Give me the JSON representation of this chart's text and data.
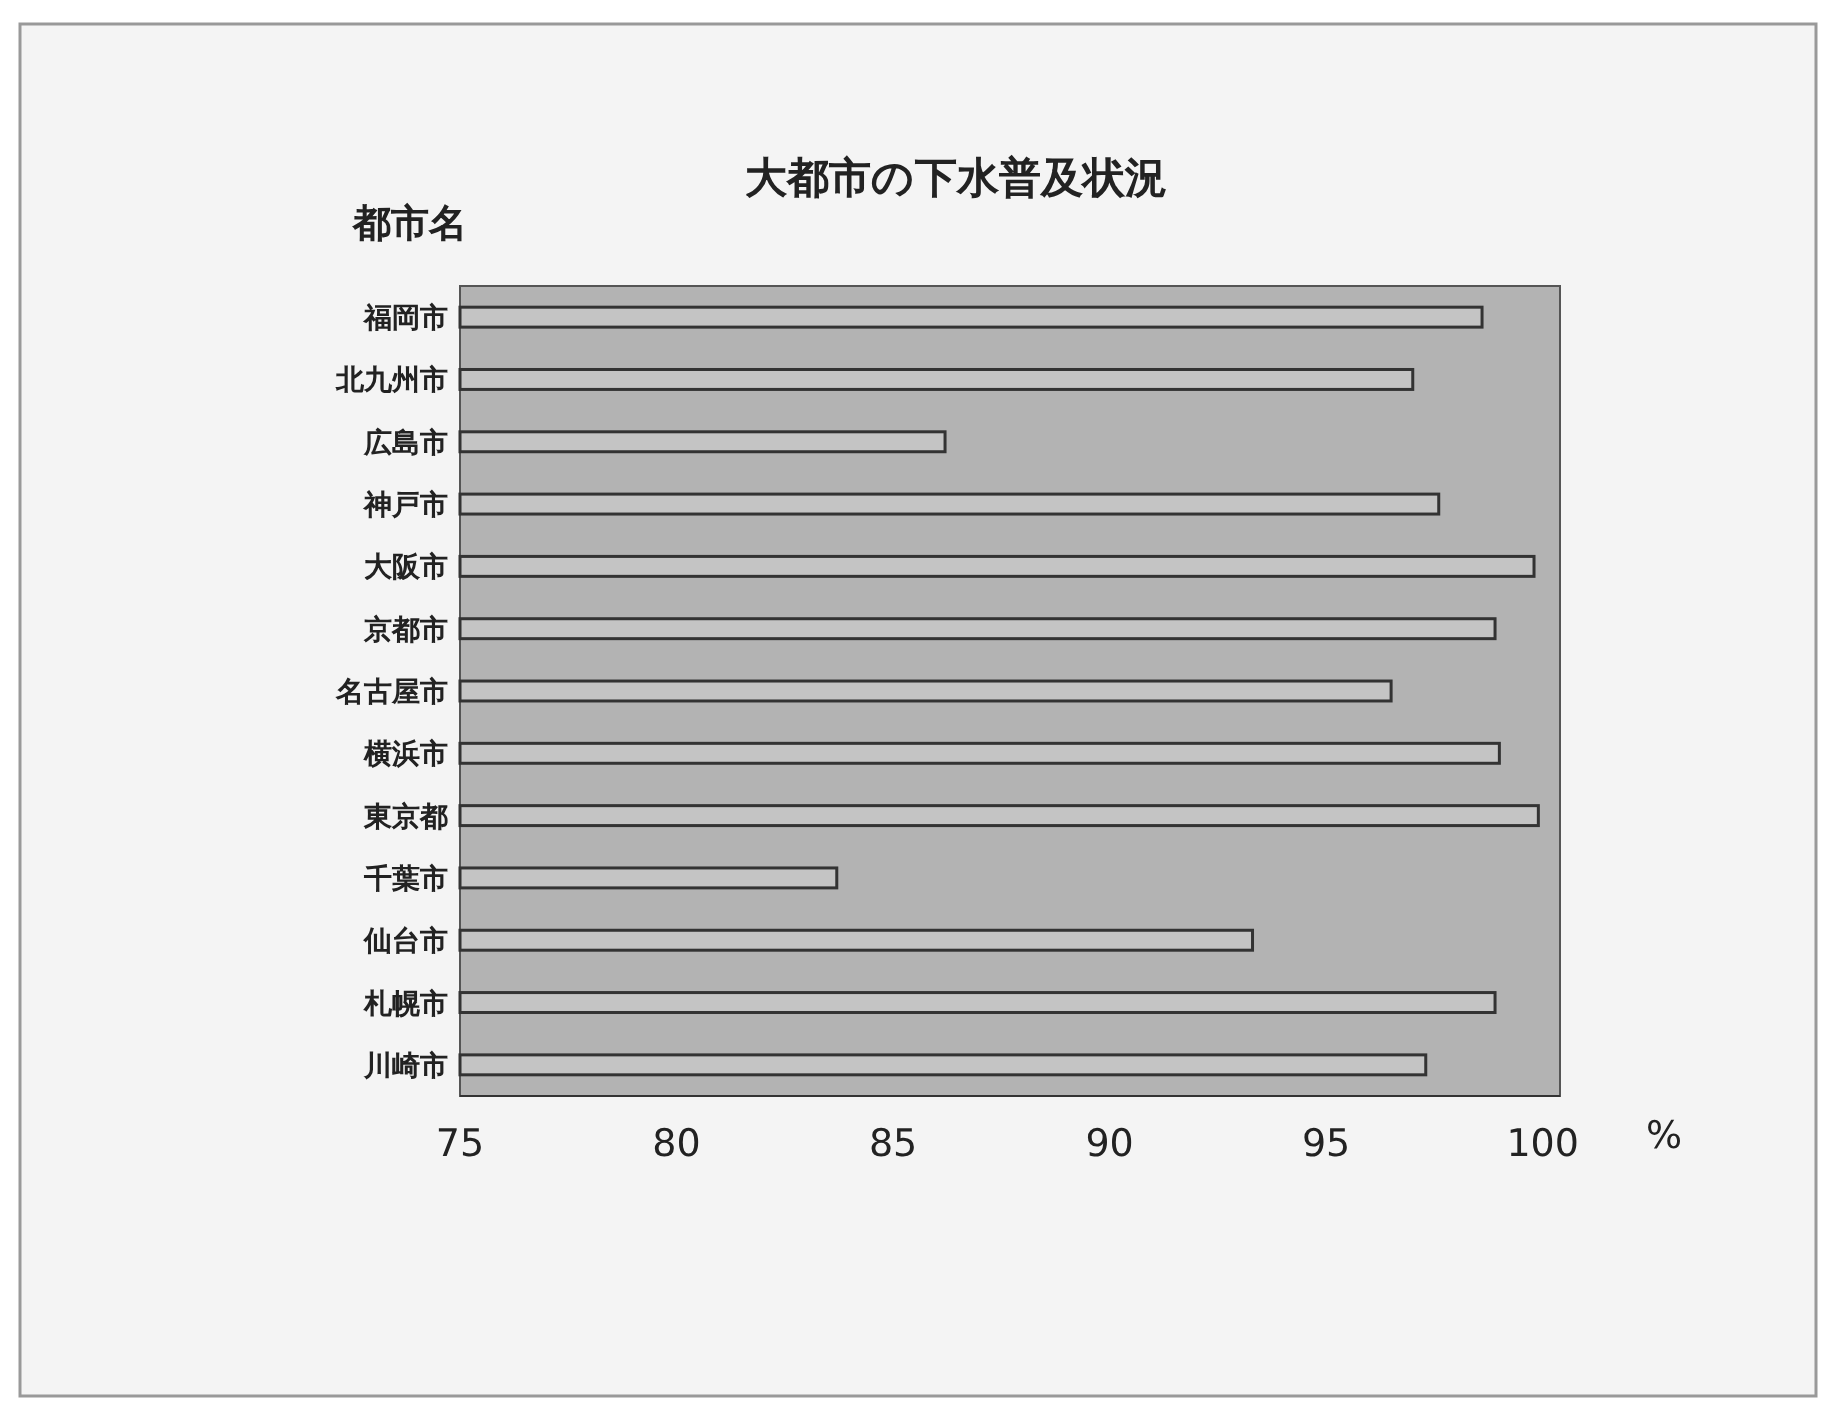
{
  "chart_data": {
    "type": "bar",
    "orientation": "horizontal",
    "title": "大都市の下水普及状況",
    "ylabel": "都市名",
    "xlabel": "%",
    "categories": [
      "福岡市",
      "北九州市",
      "広島市",
      "神戸市",
      "大阪市",
      "京都市",
      "名古屋市",
      "横浜市",
      "東京都",
      "千葉市",
      "仙台市",
      "札幌市",
      "川崎市"
    ],
    "values": [
      98.6,
      97.0,
      86.2,
      97.6,
      99.8,
      98.9,
      96.5,
      99.0,
      99.9,
      83.7,
      93.3,
      98.9,
      97.3
    ],
    "color": "#c4c4c4",
    "xlim": [
      75,
      100.4
    ],
    "xticks": [
      75,
      80,
      85,
      90,
      95,
      100
    ],
    "grid": false
  }
}
